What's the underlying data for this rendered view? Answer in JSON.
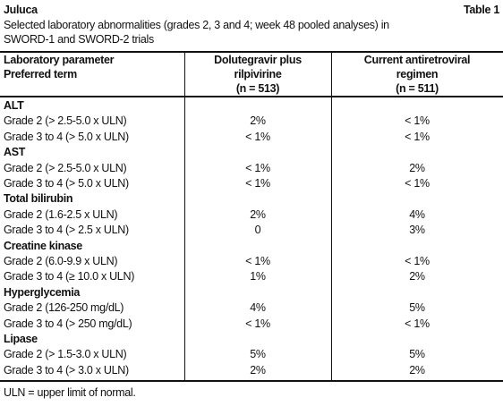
{
  "header": {
    "title": "Juluca",
    "label": "Table 1",
    "caption": [
      "Selected laboratory abnormalities (grades 2, 3 and 4; week 48 pooled analyses) in",
      "SWORD-1 and SWORD-2 trials"
    ]
  },
  "table": {
    "columns": [
      [
        "Laboratory parameter",
        "Preferred term"
      ],
      [
        "Dolutegravir plus",
        "rilpivirine",
        "(n = 513)"
      ],
      [
        "Current antiretroviral",
        "regimen",
        "(n = 511)"
      ]
    ],
    "sections": [
      {
        "name": "ALT",
        "rows": [
          [
            "Grade 2 (> 2.5-5.0 x ULN)",
            "2%",
            "< 1%"
          ],
          [
            "Grade 3 to 4 (> 5.0 x ULN)",
            "< 1%",
            "< 1%"
          ]
        ]
      },
      {
        "name": "AST",
        "rows": [
          [
            "Grade 2 (> 2.5-5.0 x ULN)",
            "< 1%",
            "2%"
          ],
          [
            "Grade 3 to 4 (> 5.0 x ULN)",
            "< 1%",
            "< 1%"
          ]
        ]
      },
      {
        "name": "Total bilirubin",
        "rows": [
          [
            "Grade 2 (1.6-2.5 x ULN)",
            "2%",
            "4%"
          ],
          [
            "Grade 3 to 4 (> 2.5 x ULN)",
            "0",
            "3%"
          ]
        ]
      },
      {
        "name": "Creatine kinase",
        "rows": [
          [
            "Grade 2 (6.0-9.9 x ULN)",
            "< 1%",
            "< 1%"
          ],
          [
            "Grade 3 to 4 (≥ 10.0 x ULN)",
            "1%",
            "2%"
          ]
        ]
      },
      {
        "name": "Hyperglycemia",
        "rows": [
          [
            "Grade 2 (126-250 mg/dL)",
            "4%",
            "5%"
          ],
          [
            "Grade 3 to 4 (> 250 mg/dL)",
            "< 1%",
            "< 1%"
          ]
        ]
      },
      {
        "name": "Lipase",
        "rows": [
          [
            "Grade 2 (> 1.5-3.0 x ULN)",
            "5%",
            "5%"
          ],
          [
            "Grade 3 to 4 (> 3.0 x ULN)",
            "2%",
            "2%"
          ]
        ]
      }
    ]
  },
  "footnote": "ULN = upper limit of normal."
}
